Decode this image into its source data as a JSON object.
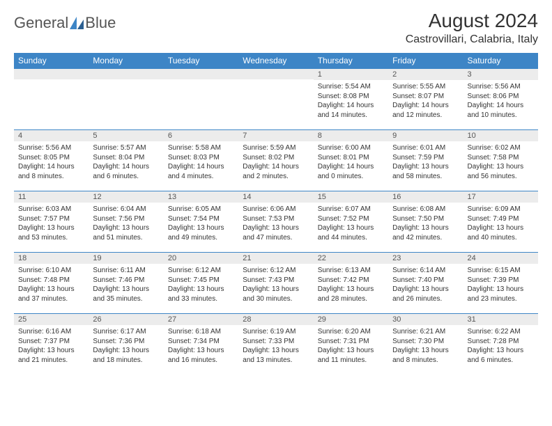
{
  "brand": {
    "part1": "General",
    "part2": "Blue"
  },
  "colors": {
    "header_bg": "#3d85c6",
    "header_text": "#ffffff",
    "daynum_bg": "#ececec",
    "daynum_border": "#3d85c6",
    "body_text": "#333333",
    "logo_gray": "#666666"
  },
  "title": "August 2024",
  "location": "Castrovillari, Calabria, Italy",
  "weekdays": [
    "Sunday",
    "Monday",
    "Tuesday",
    "Wednesday",
    "Thursday",
    "Friday",
    "Saturday"
  ],
  "weeks": [
    [
      {
        "n": "",
        "sr": "",
        "ss": "",
        "dl": ""
      },
      {
        "n": "",
        "sr": "",
        "ss": "",
        "dl": ""
      },
      {
        "n": "",
        "sr": "",
        "ss": "",
        "dl": ""
      },
      {
        "n": "",
        "sr": "",
        "ss": "",
        "dl": ""
      },
      {
        "n": "1",
        "sr": "Sunrise: 5:54 AM",
        "ss": "Sunset: 8:08 PM",
        "dl": "Daylight: 14 hours and 14 minutes."
      },
      {
        "n": "2",
        "sr": "Sunrise: 5:55 AM",
        "ss": "Sunset: 8:07 PM",
        "dl": "Daylight: 14 hours and 12 minutes."
      },
      {
        "n": "3",
        "sr": "Sunrise: 5:56 AM",
        "ss": "Sunset: 8:06 PM",
        "dl": "Daylight: 14 hours and 10 minutes."
      }
    ],
    [
      {
        "n": "4",
        "sr": "Sunrise: 5:56 AM",
        "ss": "Sunset: 8:05 PM",
        "dl": "Daylight: 14 hours and 8 minutes."
      },
      {
        "n": "5",
        "sr": "Sunrise: 5:57 AM",
        "ss": "Sunset: 8:04 PM",
        "dl": "Daylight: 14 hours and 6 minutes."
      },
      {
        "n": "6",
        "sr": "Sunrise: 5:58 AM",
        "ss": "Sunset: 8:03 PM",
        "dl": "Daylight: 14 hours and 4 minutes."
      },
      {
        "n": "7",
        "sr": "Sunrise: 5:59 AM",
        "ss": "Sunset: 8:02 PM",
        "dl": "Daylight: 14 hours and 2 minutes."
      },
      {
        "n": "8",
        "sr": "Sunrise: 6:00 AM",
        "ss": "Sunset: 8:01 PM",
        "dl": "Daylight: 14 hours and 0 minutes."
      },
      {
        "n": "9",
        "sr": "Sunrise: 6:01 AM",
        "ss": "Sunset: 7:59 PM",
        "dl": "Daylight: 13 hours and 58 minutes."
      },
      {
        "n": "10",
        "sr": "Sunrise: 6:02 AM",
        "ss": "Sunset: 7:58 PM",
        "dl": "Daylight: 13 hours and 56 minutes."
      }
    ],
    [
      {
        "n": "11",
        "sr": "Sunrise: 6:03 AM",
        "ss": "Sunset: 7:57 PM",
        "dl": "Daylight: 13 hours and 53 minutes."
      },
      {
        "n": "12",
        "sr": "Sunrise: 6:04 AM",
        "ss": "Sunset: 7:56 PM",
        "dl": "Daylight: 13 hours and 51 minutes."
      },
      {
        "n": "13",
        "sr": "Sunrise: 6:05 AM",
        "ss": "Sunset: 7:54 PM",
        "dl": "Daylight: 13 hours and 49 minutes."
      },
      {
        "n": "14",
        "sr": "Sunrise: 6:06 AM",
        "ss": "Sunset: 7:53 PM",
        "dl": "Daylight: 13 hours and 47 minutes."
      },
      {
        "n": "15",
        "sr": "Sunrise: 6:07 AM",
        "ss": "Sunset: 7:52 PM",
        "dl": "Daylight: 13 hours and 44 minutes."
      },
      {
        "n": "16",
        "sr": "Sunrise: 6:08 AM",
        "ss": "Sunset: 7:50 PM",
        "dl": "Daylight: 13 hours and 42 minutes."
      },
      {
        "n": "17",
        "sr": "Sunrise: 6:09 AM",
        "ss": "Sunset: 7:49 PM",
        "dl": "Daylight: 13 hours and 40 minutes."
      }
    ],
    [
      {
        "n": "18",
        "sr": "Sunrise: 6:10 AM",
        "ss": "Sunset: 7:48 PM",
        "dl": "Daylight: 13 hours and 37 minutes."
      },
      {
        "n": "19",
        "sr": "Sunrise: 6:11 AM",
        "ss": "Sunset: 7:46 PM",
        "dl": "Daylight: 13 hours and 35 minutes."
      },
      {
        "n": "20",
        "sr": "Sunrise: 6:12 AM",
        "ss": "Sunset: 7:45 PM",
        "dl": "Daylight: 13 hours and 33 minutes."
      },
      {
        "n": "21",
        "sr": "Sunrise: 6:12 AM",
        "ss": "Sunset: 7:43 PM",
        "dl": "Daylight: 13 hours and 30 minutes."
      },
      {
        "n": "22",
        "sr": "Sunrise: 6:13 AM",
        "ss": "Sunset: 7:42 PM",
        "dl": "Daylight: 13 hours and 28 minutes."
      },
      {
        "n": "23",
        "sr": "Sunrise: 6:14 AM",
        "ss": "Sunset: 7:40 PM",
        "dl": "Daylight: 13 hours and 26 minutes."
      },
      {
        "n": "24",
        "sr": "Sunrise: 6:15 AM",
        "ss": "Sunset: 7:39 PM",
        "dl": "Daylight: 13 hours and 23 minutes."
      }
    ],
    [
      {
        "n": "25",
        "sr": "Sunrise: 6:16 AM",
        "ss": "Sunset: 7:37 PM",
        "dl": "Daylight: 13 hours and 21 minutes."
      },
      {
        "n": "26",
        "sr": "Sunrise: 6:17 AM",
        "ss": "Sunset: 7:36 PM",
        "dl": "Daylight: 13 hours and 18 minutes."
      },
      {
        "n": "27",
        "sr": "Sunrise: 6:18 AM",
        "ss": "Sunset: 7:34 PM",
        "dl": "Daylight: 13 hours and 16 minutes."
      },
      {
        "n": "28",
        "sr": "Sunrise: 6:19 AM",
        "ss": "Sunset: 7:33 PM",
        "dl": "Daylight: 13 hours and 13 minutes."
      },
      {
        "n": "29",
        "sr": "Sunrise: 6:20 AM",
        "ss": "Sunset: 7:31 PM",
        "dl": "Daylight: 13 hours and 11 minutes."
      },
      {
        "n": "30",
        "sr": "Sunrise: 6:21 AM",
        "ss": "Sunset: 7:30 PM",
        "dl": "Daylight: 13 hours and 8 minutes."
      },
      {
        "n": "31",
        "sr": "Sunrise: 6:22 AM",
        "ss": "Sunset: 7:28 PM",
        "dl": "Daylight: 13 hours and 6 minutes."
      }
    ]
  ]
}
